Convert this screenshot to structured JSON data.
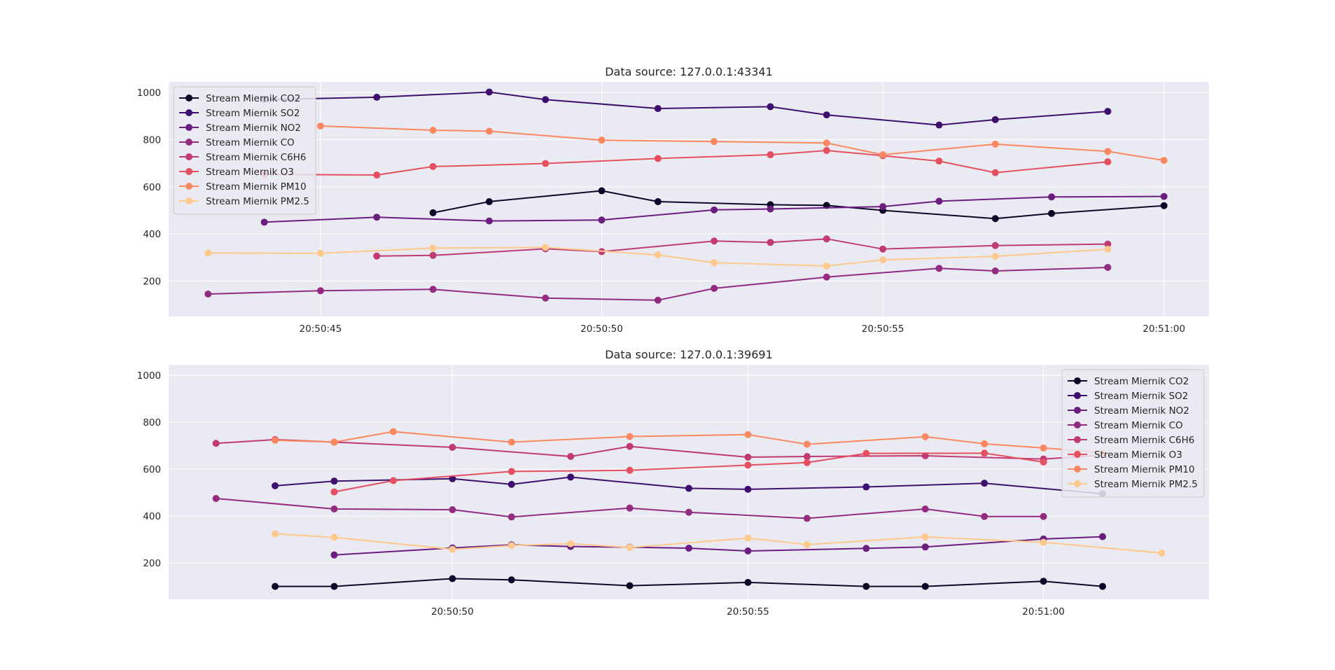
{
  "colors": {
    "background": "#eaeaf2",
    "grid": "#ffffff",
    "series": [
      "#0d0829",
      "#3e0f6e",
      "#6b1d80",
      "#932b80",
      "#c03a76",
      "#e54f5f",
      "#fb8861",
      "#fec98d"
    ]
  },
  "series_names": [
    "Stream Miernik CO2",
    "Stream Miernik SO2",
    "Stream Miernik NO2",
    "Stream Miernik CO",
    "Stream Miernik C6H6",
    "Stream Miernik O3",
    "Stream Miernik PM10",
    "Stream Miernik PM2.5"
  ],
  "chart_data": [
    {
      "type": "line",
      "title": "Data source: 127.0.0.1:43341",
      "xlabel": "",
      "ylabel": "",
      "x_ticks": [
        "20:50:45",
        "20:50:50",
        "20:50:55",
        "20:51:00"
      ],
      "y_ticks": [
        200,
        400,
        600,
        800,
        1000
      ],
      "xlim": [
        "20:50:42.3",
        "20:51:00.8"
      ],
      "ylim": [
        50,
        1045
      ],
      "grid": true,
      "legend": "upper left",
      "series": [
        {
          "name": "Stream Miernik CO2",
          "points": [
            [
              "20:50:47",
              490
            ],
            [
              "20:50:48",
              537
            ],
            [
              "20:50:50",
              583
            ],
            [
              "20:50:51",
              537
            ],
            [
              "20:50:53",
              524
            ],
            [
              "20:50:54",
              521
            ],
            [
              "20:50:55",
              500
            ],
            [
              "20:50:57",
              465
            ],
            [
              "20:50:58",
              487
            ],
            [
              "20:51:00",
              520
            ]
          ]
        },
        {
          "name": "Stream Miernik SO2",
          "points": [
            [
              "20:50:44",
              970
            ],
            [
              "20:50:46",
              980
            ],
            [
              "20:50:48",
              1002
            ],
            [
              "20:50:49",
              970
            ],
            [
              "20:50:51",
              932
            ],
            [
              "20:50:53",
              940
            ],
            [
              "20:50:54",
              905
            ],
            [
              "20:50:56",
              862
            ],
            [
              "20:50:57",
              885
            ],
            [
              "20:50:59",
              920
            ]
          ]
        },
        {
          "name": "Stream Miernik NO2",
          "points": [
            [
              "20:50:44",
              450
            ],
            [
              "20:50:46",
              471
            ],
            [
              "20:50:48",
              455
            ],
            [
              "20:50:50",
              459
            ],
            [
              "20:50:52",
              502
            ],
            [
              "20:50:53",
              506
            ],
            [
              "20:50:55",
              516
            ],
            [
              "20:50:56",
              539
            ],
            [
              "20:50:58",
              557
            ],
            [
              "20:51:00",
              559
            ]
          ]
        },
        {
          "name": "Stream Miernik CO",
          "points": [
            [
              "20:50:43",
              145
            ],
            [
              "20:50:45",
              159
            ],
            [
              "20:50:47",
              165
            ],
            [
              "20:50:49",
              128
            ],
            [
              "20:50:51",
              119
            ],
            [
              "20:50:52",
              169
            ],
            [
              "20:50:54",
              217
            ],
            [
              "20:50:56",
              254
            ],
            [
              "20:50:57",
              243
            ],
            [
              "20:50:59",
              258
            ]
          ]
        },
        {
          "name": "Stream Miernik C6H6",
          "points": [
            [
              "20:50:46",
              306
            ],
            [
              "20:50:47",
              309
            ],
            [
              "20:50:49",
              337
            ],
            [
              "20:50:50",
              325
            ],
            [
              "20:50:52",
              370
            ],
            [
              "20:50:53",
              364
            ],
            [
              "20:50:54",
              379
            ],
            [
              "20:50:55",
              336
            ],
            [
              "20:50:57",
              351
            ],
            [
              "20:50:59",
              357
            ]
          ]
        },
        {
          "name": "Stream Miernik O3",
          "points": [
            [
              "20:50:44",
              653
            ],
            [
              "20:50:46",
              650
            ],
            [
              "20:50:47",
              686
            ],
            [
              "20:50:49",
              699
            ],
            [
              "20:50:51",
              720
            ],
            [
              "20:50:53",
              736
            ],
            [
              "20:50:54",
              754
            ],
            [
              "20:50:55",
              732
            ],
            [
              "20:50:56",
              709
            ],
            [
              "20:50:57",
              660
            ],
            [
              "20:50:59",
              706
            ]
          ]
        },
        {
          "name": "Stream Miernik PM10",
          "points": [
            [
              "20:50:45",
              858
            ],
            [
              "20:50:47",
              840
            ],
            [
              "20:50:48",
              836
            ],
            [
              "20:50:50",
              798
            ],
            [
              "20:50:52",
              792
            ],
            [
              "20:50:54",
              786
            ],
            [
              "20:50:55",
              736
            ],
            [
              "20:50:57",
              781
            ],
            [
              "20:50:59",
              750
            ],
            [
              "20:51:00",
              712
            ]
          ]
        },
        {
          "name": "Stream Miernik PM2.5",
          "points": [
            [
              "20:50:43",
              319
            ],
            [
              "20:50:45",
              318
            ],
            [
              "20:50:47",
              340
            ],
            [
              "20:50:49",
              343
            ],
            [
              "20:50:51",
              311
            ],
            [
              "20:50:52",
              278
            ],
            [
              "20:50:54",
              264
            ],
            [
              "20:50:55",
              290
            ],
            [
              "20:50:57",
              305
            ],
            [
              "20:50:59",
              335
            ]
          ]
        }
      ]
    },
    {
      "type": "line",
      "title": "Data source: 127.0.0.1:39691",
      "xlabel": "",
      "ylabel": "",
      "x_ticks": [
        "20:50:50",
        "20:50:55",
        "20:51:00"
      ],
      "y_ticks": [
        200,
        400,
        600,
        800,
        1000
      ],
      "xlim": [
        "20:50:45.2",
        "20:51:02.8"
      ],
      "ylim": [
        45,
        1045
      ],
      "grid": true,
      "legend": "upper right",
      "series": [
        {
          "name": "Stream Miernik CO2",
          "points": [
            [
              "20:50:47",
              100
            ],
            [
              "20:50:48",
              100
            ],
            [
              "20:50:50",
              133
            ],
            [
              "20:50:51",
              128
            ],
            [
              "20:50:53",
              103
            ],
            [
              "20:50:55",
              117
            ],
            [
              "20:50:57",
              100
            ],
            [
              "20:50:58",
              100
            ],
            [
              "20:51:00",
              122
            ],
            [
              "20:51:01",
              100
            ]
          ]
        },
        {
          "name": "Stream Miernik SO2",
          "points": [
            [
              "20:50:47",
              529
            ],
            [
              "20:50:48",
              549
            ],
            [
              "20:50:50",
              559
            ],
            [
              "20:50:51",
              535
            ],
            [
              "20:50:52",
              566
            ],
            [
              "20:50:54",
              518
            ],
            [
              "20:50:55",
              514
            ],
            [
              "20:50:57",
              524
            ],
            [
              "20:50:59",
              540
            ],
            [
              "20:51:01",
              495
            ]
          ]
        },
        {
          "name": "Stream Miernik NO2",
          "points": [
            [
              "20:50:48",
              234
            ],
            [
              "20:50:50",
              264
            ],
            [
              "20:50:51",
              277
            ],
            [
              "20:50:52",
              270
            ],
            [
              "20:50:53",
              267
            ],
            [
              "20:50:54",
              263
            ],
            [
              "20:50:55",
              251
            ],
            [
              "20:50:57",
              262
            ],
            [
              "20:50:58",
              268
            ],
            [
              "20:51:00",
              302
            ],
            [
              "20:51:01",
              312
            ]
          ]
        },
        {
          "name": "Stream Miernik CO",
          "points": [
            [
              "20:50:46",
              475
            ],
            [
              "20:50:48",
              430
            ],
            [
              "20:50:50",
              427
            ],
            [
              "20:50:51",
              396
            ],
            [
              "20:50:53",
              434
            ],
            [
              "20:50:54",
              416
            ],
            [
              "20:50:56",
              390
            ],
            [
              "20:50:58",
              430
            ],
            [
              "20:50:59",
              398
            ],
            [
              "20:51:00",
              398
            ]
          ]
        },
        {
          "name": "Stream Miernik C6H6",
          "points": [
            [
              "20:50:46",
              710
            ],
            [
              "20:50:47",
              726
            ],
            [
              "20:50:48",
              715
            ],
            [
              "20:50:50",
              693
            ],
            [
              "20:50:52",
              654
            ],
            [
              "20:50:53",
              697
            ],
            [
              "20:50:55",
              651
            ],
            [
              "20:50:56",
              654
            ],
            [
              "20:50:58",
              657
            ],
            [
              "20:51:00",
              643
            ],
            [
              "20:51:01",
              660
            ]
          ]
        },
        {
          "name": "Stream Miernik O3",
          "points": [
            [
              "20:50:48",
              503
            ],
            [
              "20:50:49",
              551
            ],
            [
              "20:50:51",
              590
            ],
            [
              "20:50:53",
              595
            ],
            [
              "20:50:55",
              617
            ],
            [
              "20:50:56",
              628
            ],
            [
              "20:50:57",
              667
            ],
            [
              "20:50:59",
              668
            ],
            [
              "20:51:00",
              630
            ]
          ]
        },
        {
          "name": "Stream Miernik PM10",
          "points": [
            [
              "20:50:47",
              723
            ],
            [
              "20:50:48",
              715
            ],
            [
              "20:50:49",
              760
            ],
            [
              "20:50:51",
              715
            ],
            [
              "20:50:53",
              739
            ],
            [
              "20:50:55",
              747
            ],
            [
              "20:50:56",
              706
            ],
            [
              "20:50:58",
              738
            ],
            [
              "20:50:59",
              708
            ],
            [
              "20:51:00",
              690
            ],
            [
              "20:51:01",
              671
            ]
          ]
        },
        {
          "name": "Stream Miernik PM2.5",
          "points": [
            [
              "20:50:47",
              324
            ],
            [
              "20:50:48",
              309
            ],
            [
              "20:50:50",
              258
            ],
            [
              "20:50:51",
              274
            ],
            [
              "20:50:52",
              282
            ],
            [
              "20:50:53",
              266
            ],
            [
              "20:50:55",
              306
            ],
            [
              "20:50:56",
              278
            ],
            [
              "20:50:58",
              311
            ],
            [
              "20:51:00",
              288
            ],
            [
              "20:51:02",
              242
            ]
          ]
        }
      ]
    }
  ]
}
